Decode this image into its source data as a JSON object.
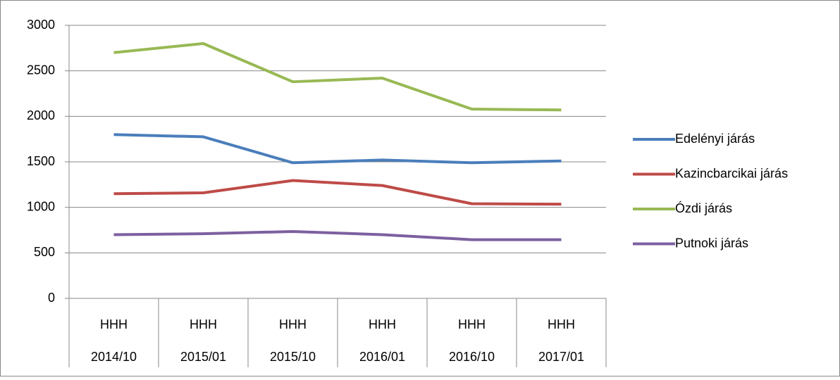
{
  "chart_data": {
    "type": "line",
    "categories": [
      [
        "HHH",
        "2014/10"
      ],
      [
        "HHH",
        "2015/01"
      ],
      [
        "HHH",
        "2015/10"
      ],
      [
        "HHH",
        "2016/01"
      ],
      [
        "HHH",
        "2016/10"
      ],
      [
        "HHH",
        "2017/01"
      ]
    ],
    "series": [
      {
        "name": "Edelényi járás",
        "color": "#4a7ebb",
        "values": [
          1800,
          1775,
          1490,
          1520,
          1490,
          1510
        ]
      },
      {
        "name": "Kazincbarcikai járás",
        "color": "#be4b48",
        "values": [
          1150,
          1160,
          1295,
          1240,
          1040,
          1035
        ]
      },
      {
        "name": "Ózdi járás",
        "color": "#98b954",
        "values": [
          2700,
          2800,
          2380,
          2420,
          2080,
          2070
        ]
      },
      {
        "name": "Putnoki járás",
        "color": "#7d60a0",
        "values": [
          700,
          710,
          735,
          700,
          645,
          645
        ]
      }
    ],
    "ylim": [
      0,
      3000
    ],
    "yticks": [
      0,
      500,
      1000,
      1500,
      2000,
      2500,
      3000
    ],
    "grid": true,
    "legend": "right"
  }
}
